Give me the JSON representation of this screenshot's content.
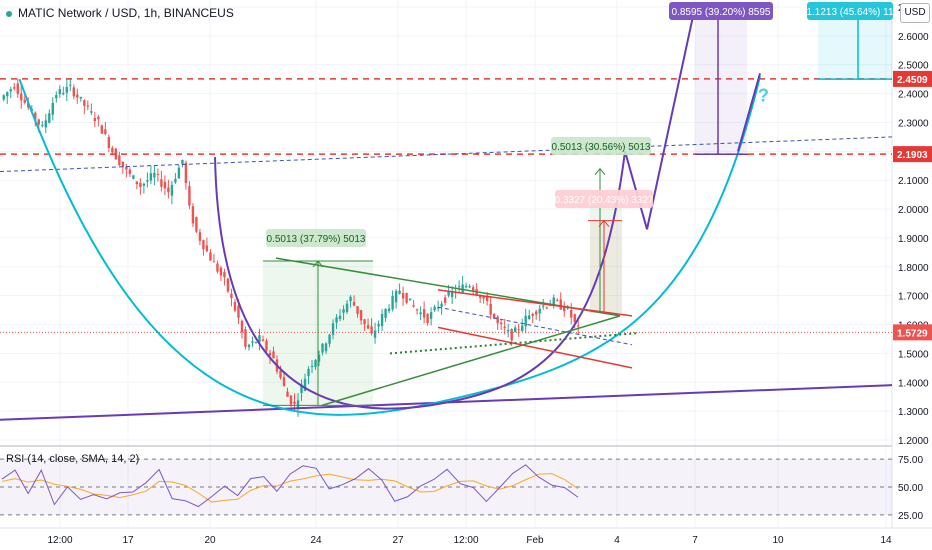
{
  "header": {
    "title": "MATIC Network / USD, 1h, BINANCEUS",
    "currency_badge": "USD"
  },
  "rsi": {
    "label": "RSI (14, close, SMA, 14, 2)",
    "levels": [
      "75.00",
      "50.00",
      "25.00"
    ]
  },
  "colors": {
    "up": "#26a69a",
    "down": "#ef5350",
    "cyan_curve": "#00bcd4",
    "purple_curve": "#673ab7",
    "resistance_red": "#e53935",
    "rsi_line": "#7e57c2",
    "rsi_ma": "#f9a825"
  },
  "chart_data": {
    "type": "candlestick",
    "symbol": "MATIC Network / USD",
    "interval": "1h",
    "exchange": "BINANCEUS",
    "ylim": [
      1.2,
      2.7
    ],
    "y_ticks": [
      "2.7000",
      "2.6000",
      "2.5000",
      "2.4000",
      "2.3000",
      "2.2000",
      "2.1000",
      "2.0000",
      "1.9000",
      "1.8000",
      "1.7000",
      "1.6000",
      "1.5000",
      "1.4000",
      "1.3000",
      "1.2000"
    ],
    "x_ticks": [
      "12:00",
      "17",
      "20",
      "24",
      "27",
      "12:00",
      "Feb",
      "4",
      "7",
      "10",
      "14"
    ],
    "horizontal_levels": [
      {
        "value": 2.4509,
        "label": "2.4509"
      },
      {
        "value": 2.1903,
        "label": "2.1903"
      }
    ],
    "last_price": {
      "value": 1.5729,
      "label": "1.5729"
    },
    "price_path": [
      [
        0,
        2.38
      ],
      [
        4,
        2.43
      ],
      [
        8,
        2.35
      ],
      [
        12,
        2.28
      ],
      [
        16,
        2.4
      ],
      [
        20,
        2.42
      ],
      [
        24,
        2.36
      ],
      [
        28,
        2.3
      ],
      [
        32,
        2.2
      ],
      [
        36,
        2.13
      ],
      [
        40,
        2.08
      ],
      [
        44,
        2.12
      ],
      [
        48,
        2.06
      ],
      [
        52,
        2.17
      ],
      [
        54,
        2.0
      ],
      [
        56,
        1.92
      ],
      [
        60,
        1.83
      ],
      [
        64,
        1.75
      ],
      [
        68,
        1.62
      ],
      [
        70,
        1.52
      ],
      [
        74,
        1.55
      ],
      [
        78,
        1.48
      ],
      [
        82,
        1.35
      ],
      [
        84,
        1.32
      ],
      [
        88,
        1.45
      ],
      [
        92,
        1.52
      ],
      [
        96,
        1.62
      ],
      [
        100,
        1.69
      ],
      [
        103,
        1.62
      ],
      [
        106,
        1.56
      ],
      [
        110,
        1.65
      ],
      [
        114,
        1.72
      ],
      [
        118,
        1.66
      ],
      [
        122,
        1.62
      ],
      [
        126,
        1.68
      ],
      [
        130,
        1.72
      ],
      [
        134,
        1.74
      ],
      [
        138,
        1.69
      ],
      [
        142,
        1.6
      ],
      [
        146,
        1.56
      ],
      [
        150,
        1.62
      ],
      [
        154,
        1.66
      ],
      [
        158,
        1.68
      ],
      [
        162,
        1.65
      ],
      [
        165,
        1.58
      ]
    ],
    "measure_labels": [
      {
        "text": "0.5013 (37.79%) 5013",
        "kind": "gain"
      },
      {
        "text": "0.5013 (30.56%) 5013",
        "kind": "gain"
      },
      {
        "text": "0.3327 (20.43%) 3327",
        "kind": "loss"
      },
      {
        "text": "0.8595 (39.20%) 8595",
        "kind": "projection"
      },
      {
        "text": "1.1213 (45.64%) 11",
        "kind": "projection-alt"
      }
    ],
    "annotation": "?",
    "rsi_ylim": [
      15,
      85
    ],
    "rsi_values": [
      55,
      60,
      48,
      62,
      40,
      52,
      38,
      45,
      35,
      44,
      48,
      58,
      70,
      42,
      36,
      30,
      38,
      48,
      40,
      62,
      55,
      46,
      58,
      70,
      66,
      52,
      48,
      60,
      64,
      56,
      42,
      38,
      46,
      58,
      62,
      54,
      48,
      40,
      50,
      66,
      70,
      60,
      52,
      44,
      38
    ]
  }
}
